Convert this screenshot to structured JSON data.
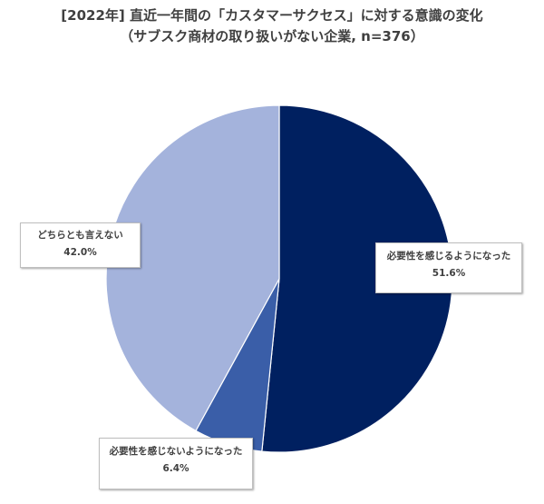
{
  "chart_data": {
    "type": "pie",
    "title": "[2022年] 直近一年間の「カスタマーサクセス」に対する意識の変化",
    "subtitle": "（サブスク商材の取り扱いがない企業, n=376）",
    "unit": "%",
    "slices": [
      {
        "label": "必要性を感じるようになった",
        "value": 51.6,
        "value_text": "51.6%",
        "color": "#002060"
      },
      {
        "label": "必要性を感じないようになった",
        "value": 6.4,
        "value_text": "6.4%",
        "color": "#3a5ea8"
      },
      {
        "label": "どちらとも言えない",
        "value": 42.0,
        "value_text": "42.0%",
        "color": "#a4b3dc"
      }
    ],
    "start": "12 o'clock",
    "direction": "clockwise",
    "legend": "callout labels"
  }
}
